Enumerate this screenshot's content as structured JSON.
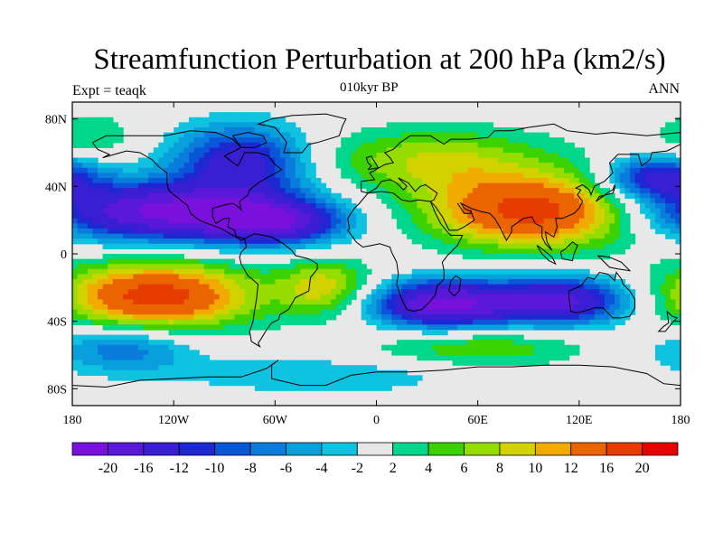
{
  "header": {
    "title": "Streamfunction Perturbation at 200 hPa (km2/s)",
    "subtitle": "010kyr BP",
    "left": "Expt = teaqk",
    "right": "ANN"
  },
  "map": {
    "projection": "cylindrical-equidistant",
    "lon_range": [
      -180,
      180
    ],
    "lat_range": [
      -90,
      90
    ],
    "lat_ticks": [
      "80N",
      "40N",
      "0",
      "40S",
      "80S"
    ],
    "lon_ticks": [
      "180",
      "120W",
      "60W",
      "0",
      "60E",
      "120E",
      "180"
    ],
    "background": "#e8e8e8"
  },
  "colorbar": {
    "colors": [
      "#7a10dc",
      "#5a18d8",
      "#3a1ed2",
      "#1e28d2",
      "#0a56d8",
      "#0a7cdc",
      "#08a0dc",
      "#0ec2e0",
      "#e6e6e6",
      "#00d68c",
      "#3cd200",
      "#96dc00",
      "#d2d200",
      "#f0aa00",
      "#ea6400",
      "#e63c00",
      "#e60000"
    ],
    "labels": [
      "-20",
      "-16",
      "-12",
      "-10",
      "-8",
      "-6",
      "-4",
      "-2",
      "2",
      "4",
      "6",
      "8",
      "10",
      "12",
      "16",
      "20"
    ]
  },
  "chart_data": {
    "type": "heatmap",
    "title": "Streamfunction Perturbation at 200 hPa (km2/s)",
    "subtitle": "010kyr BP",
    "levels": [
      -20,
      -16,
      -12,
      -10,
      -8,
      -6,
      -4,
      -2,
      2,
      4,
      6,
      8,
      10,
      12,
      16,
      20
    ],
    "features": [
      {
        "lon": -125,
        "lat": 25,
        "value": -21,
        "sx": 55,
        "sy": 12
      },
      {
        "lon": -60,
        "lat": 18,
        "value": -14,
        "sx": 28,
        "sy": 9
      },
      {
        "lon": -80,
        "lat": 55,
        "value": -14,
        "sx": 28,
        "sy": 15
      },
      {
        "lon": 165,
        "lat": 45,
        "value": -14,
        "sx": 22,
        "sy": 9
      },
      {
        "lon": 40,
        "lat": -30,
        "value": -21,
        "sx": 30,
        "sy": 10
      },
      {
        "lon": 110,
        "lat": -28,
        "value": -17,
        "sx": 28,
        "sy": 10
      },
      {
        "lon": -150,
        "lat": -56,
        "value": -8,
        "sx": 30,
        "sy": 10
      },
      {
        "lon": -30,
        "lat": -72,
        "value": -4,
        "sx": 60,
        "sy": 8
      },
      {
        "lon": -130,
        "lat": -25,
        "value": 18,
        "sx": 40,
        "sy": 14
      },
      {
        "lon": -30,
        "lat": -20,
        "value": 9,
        "sx": 20,
        "sy": 12
      },
      {
        "lon": 95,
        "lat": 25,
        "value": 18,
        "sx": 45,
        "sy": 15
      },
      {
        "lon": 35,
        "lat": 55,
        "value": 8,
        "sx": 50,
        "sy": 14
      },
      {
        "lon": 60,
        "lat": -55,
        "value": 6,
        "sx": 45,
        "sy": 9
      },
      {
        "lon": -170,
        "lat": 70,
        "value": 4,
        "sx": 20,
        "sy": 10
      }
    ]
  }
}
